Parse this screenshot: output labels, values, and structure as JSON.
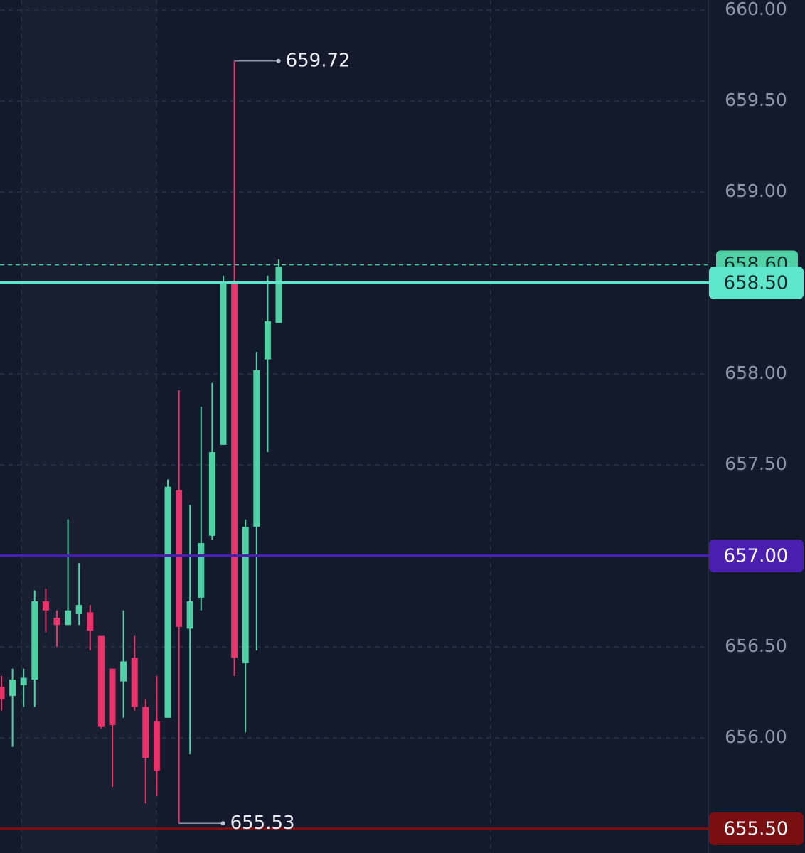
{
  "chart_data": {
    "type": "candlestick",
    "open": [
      656.28,
      656.23,
      656.29,
      656.32,
      656.75,
      656.66,
      656.62,
      656.68,
      656.69,
      656.56,
      656.38,
      656.31,
      656.44,
      656.17,
      656.09,
      656.11,
      657.36,
      656.6,
      656.77,
      657.11,
      657.61,
      658.5,
      656.41,
      657.16,
      658.08,
      658.28
    ],
    "high": [
      656.34,
      656.38,
      656.38,
      656.81,
      656.82,
      656.7,
      657.2,
      656.96,
      656.73,
      656.56,
      656.38,
      656.7,
      656.56,
      656.21,
      656.34,
      657.42,
      657.91,
      657.28,
      657.82,
      657.95,
      658.54,
      659.72,
      657.2,
      658.12,
      658.54,
      658.63
    ],
    "low": [
      656.15,
      655.95,
      656.17,
      656.17,
      656.58,
      656.5,
      656.62,
      656.62,
      656.48,
      656.05,
      655.73,
      656.11,
      656.15,
      655.64,
      655.68,
      656.11,
      655.53,
      655.91,
      656.7,
      657.09,
      657.61,
      656.34,
      656.03,
      656.48,
      657.57,
      658.28
    ],
    "close": [
      656.21,
      656.32,
      656.33,
      656.75,
      656.7,
      656.62,
      656.7,
      656.73,
      656.59,
      656.06,
      656.07,
      656.42,
      656.17,
      655.89,
      655.82,
      657.38,
      656.61,
      656.75,
      657.07,
      657.57,
      658.5,
      656.44,
      657.16,
      658.02,
      658.29,
      658.59
    ],
    "up_color": "#4fd1a5",
    "down_color": "#e8336b",
    "ylim": [
      655.367,
      660.055
    ],
    "yticks": [
      {
        "value": 656,
        "label": "656.00"
      },
      {
        "value": 656.5,
        "label": "656.50"
      },
      {
        "value": 657,
        "label": "657.00"
      },
      {
        "value": 657.5,
        "label": "657.50"
      },
      {
        "value": 658,
        "label": "658.00"
      },
      {
        "value": 658.5,
        "label": "658.50"
      },
      {
        "value": 659,
        "label": "659.00"
      },
      {
        "value": 659.5,
        "label": "659.50"
      },
      {
        "value": 660,
        "label": "660.00"
      }
    ],
    "grid": true,
    "annotations": [
      659.72,
      655.53
    ],
    "last_price": {
      "value": 658.6,
      "label": "658.60",
      "color": "#4fd1a5"
    },
    "hlines": [
      {
        "value": 658.5,
        "label": "658.50",
        "color": "#5ee6cb",
        "text_color": "#0f2a2a"
      },
      {
        "value": 657,
        "label": "657.00",
        "color": "#4a1fb0",
        "text_color": "#ffffff"
      },
      {
        "value": 655.5,
        "label": "655.50",
        "color": "#7a0f12",
        "text_color": "#ffffff"
      }
    ]
  }
}
